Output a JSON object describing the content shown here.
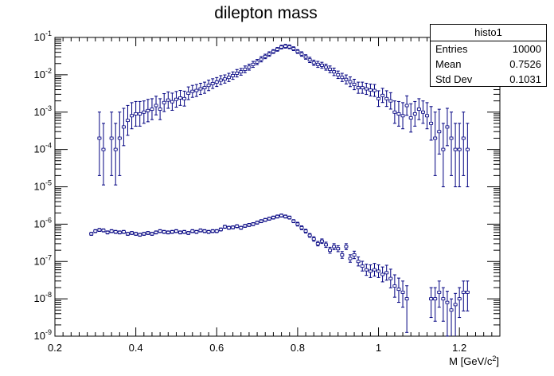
{
  "chart_data": {
    "type": "scatter",
    "title": "dilepton mass",
    "xlabel": "M [GeV/c",
    "xlabel_sup": "2",
    "xlabel_close": "]",
    "ylabel": "",
    "xlim": [
      0.2,
      1.3
    ],
    "ylim": [
      1e-09,
      0.1
    ],
    "yscale": "log",
    "grid": false,
    "marker_color": "#000080",
    "x_ticks": [
      "0.2",
      "0.4",
      "0.6",
      "0.8",
      "1",
      "1.2"
    ],
    "x_tick_values": [
      0.2,
      0.4,
      0.6,
      0.8,
      1.0,
      1.2
    ],
    "y_ticks": [
      {
        "base": "10",
        "exp": "-9",
        "value": 1e-09
      },
      {
        "base": "10",
        "exp": "-8",
        "value": 1e-08
      },
      {
        "base": "10",
        "exp": "-7",
        "value": 1e-07
      },
      {
        "base": "10",
        "exp": "-6",
        "value": 1e-06
      },
      {
        "base": "10",
        "exp": "-5",
        "value": 1e-05
      },
      {
        "base": "10",
        "exp": "-4",
        "value": 0.0001
      },
      {
        "base": "10",
        "exp": "-3",
        "value": 0.001
      },
      {
        "base": "10",
        "exp": "-2",
        "value": 0.01
      },
      {
        "base": "10",
        "exp": "-1",
        "value": 0.1
      }
    ],
    "series": [
      {
        "x": [
          0.31,
          0.32,
          0.34,
          0.35,
          0.36,
          0.37,
          0.38,
          0.39,
          0.4,
          0.41,
          0.42,
          0.43,
          0.44,
          0.45,
          0.46,
          0.47,
          0.48,
          0.49,
          0.5,
          0.51,
          0.52,
          0.53,
          0.54,
          0.55,
          0.56,
          0.57,
          0.58,
          0.59,
          0.6,
          0.61,
          0.62,
          0.63,
          0.64,
          0.65,
          0.66,
          0.67,
          0.68,
          0.69,
          0.7,
          0.71,
          0.72,
          0.73,
          0.74,
          0.75,
          0.76,
          0.77,
          0.78,
          0.79,
          0.8,
          0.81,
          0.82,
          0.83,
          0.84,
          0.85,
          0.86,
          0.87,
          0.88,
          0.89,
          0.9,
          0.91,
          0.92,
          0.93,
          0.94,
          0.95,
          0.96,
          0.97,
          0.98,
          0.99,
          1.0,
          1.01,
          1.02,
          1.03,
          1.04,
          1.05,
          1.06,
          1.07,
          1.08,
          1.09,
          1.1,
          1.11,
          1.12,
          1.13,
          1.14,
          1.15,
          1.16,
          1.17,
          1.18,
          1.19,
          1.2,
          1.21,
          1.22
        ],
        "y": [
          0.0002,
          0.0001,
          0.0002,
          0.0001,
          0.0002,
          0.0004,
          0.0006,
          0.0008,
          0.0009,
          0.0009,
          0.001,
          0.0011,
          0.0012,
          0.0015,
          0.0012,
          0.0018,
          0.0021,
          0.0019,
          0.0022,
          0.0024,
          0.0023,
          0.0032,
          0.0036,
          0.0038,
          0.0042,
          0.0045,
          0.0052,
          0.0058,
          0.0064,
          0.0072,
          0.0077,
          0.0085,
          0.0095,
          0.011,
          0.012,
          0.014,
          0.016,
          0.019,
          0.022,
          0.026,
          0.031,
          0.036,
          0.042,
          0.048,
          0.055,
          0.058,
          0.056,
          0.05,
          0.042,
          0.036,
          0.03,
          0.025,
          0.021,
          0.019,
          0.018,
          0.016,
          0.014,
          0.012,
          0.01,
          0.0085,
          0.0075,
          0.0065,
          0.0055,
          0.0045,
          0.0045,
          0.0042,
          0.0039,
          0.0038,
          0.0023,
          0.0028,
          0.0023,
          0.002,
          0.001,
          0.0009,
          0.0008,
          0.0015,
          0.0007,
          0.0009,
          0.0012,
          0.001,
          0.0008,
          0.0005,
          0.0002,
          0.0003,
          0.0001,
          0.0004,
          0.0002,
          0.0001,
          0.0001,
          0.0002,
          0.0001
        ],
        "err_low": [
          1.0,
          0.95,
          1.0,
          0.95,
          1.0,
          0.5,
          0.4,
          0.35,
          0.33,
          0.33,
          0.3,
          0.3,
          0.28,
          0.25,
          0.28,
          0.24,
          0.22,
          0.23,
          0.21,
          0.2,
          0.2,
          0.17,
          0.16,
          0.16,
          0.15,
          0.15,
          0.14,
          0.13,
          0.12,
          0.12,
          0.11,
          0.11,
          0.1,
          0.1,
          0.09,
          0.09,
          0.08,
          0.08,
          0.07,
          0.07,
          0.06,
          0.06,
          0.05,
          0.05,
          0.05,
          0.05,
          0.05,
          0.05,
          0.05,
          0.06,
          0.06,
          0.07,
          0.07,
          0.08,
          0.08,
          0.08,
          0.09,
          0.1,
          0.1,
          0.11,
          0.12,
          0.13,
          0.14,
          0.15,
          0.15,
          0.15,
          0.16,
          0.16,
          0.21,
          0.19,
          0.21,
          0.22,
          0.3,
          0.33,
          0.35,
          0.26,
          0.38,
          0.33,
          0.28,
          0.3,
          0.35,
          0.45,
          1.0,
          0.6,
          1.0,
          0.5,
          1.0,
          1.0,
          1.0,
          1.0,
          1.0
        ],
        "err_high": [
          0.7,
          0.7,
          0.7,
          0.7,
          0.7,
          0.5,
          0.4,
          0.35,
          0.33,
          0.33,
          0.3,
          0.3,
          0.28,
          0.25,
          0.28,
          0.24,
          0.22,
          0.23,
          0.21,
          0.2,
          0.2,
          0.17,
          0.16,
          0.16,
          0.15,
          0.15,
          0.14,
          0.13,
          0.12,
          0.12,
          0.11,
          0.11,
          0.1,
          0.1,
          0.09,
          0.09,
          0.08,
          0.08,
          0.07,
          0.07,
          0.06,
          0.06,
          0.05,
          0.05,
          0.05,
          0.05,
          0.05,
          0.05,
          0.05,
          0.06,
          0.06,
          0.07,
          0.07,
          0.08,
          0.08,
          0.08,
          0.09,
          0.1,
          0.1,
          0.11,
          0.12,
          0.13,
          0.14,
          0.15,
          0.15,
          0.15,
          0.16,
          0.16,
          0.21,
          0.19,
          0.21,
          0.22,
          0.3,
          0.33,
          0.35,
          0.26,
          0.38,
          0.33,
          0.28,
          0.3,
          0.35,
          0.45,
          0.7,
          0.6,
          0.7,
          0.5,
          0.7,
          0.7,
          0.7,
          0.7,
          0.7
        ]
      },
      {
        "x": [
          0.29,
          0.3,
          0.31,
          0.32,
          0.33,
          0.34,
          0.35,
          0.36,
          0.37,
          0.38,
          0.39,
          0.4,
          0.41,
          0.42,
          0.43,
          0.44,
          0.45,
          0.46,
          0.47,
          0.48,
          0.49,
          0.5,
          0.51,
          0.52,
          0.53,
          0.54,
          0.55,
          0.56,
          0.57,
          0.58,
          0.59,
          0.6,
          0.61,
          0.62,
          0.63,
          0.64,
          0.65,
          0.66,
          0.67,
          0.68,
          0.69,
          0.7,
          0.71,
          0.72,
          0.73,
          0.74,
          0.75,
          0.76,
          0.77,
          0.78,
          0.79,
          0.8,
          0.81,
          0.82,
          0.83,
          0.84,
          0.85,
          0.86,
          0.87,
          0.88,
          0.89,
          0.9,
          0.91,
          0.92,
          0.93,
          0.94,
          0.95,
          0.96,
          0.97,
          0.98,
          0.99,
          1.0,
          1.01,
          1.02,
          1.03,
          1.04,
          1.05,
          1.06,
          1.07,
          1.13,
          1.14,
          1.15,
          1.16,
          1.17,
          1.18,
          1.19,
          1.2,
          1.21,
          1.22
        ],
        "y": [
          5.5e-07,
          6.5e-07,
          7e-07,
          6.8e-07,
          6e-07,
          6.5e-07,
          6.2e-07,
          6e-07,
          6.2e-07,
          5.5e-07,
          5.8e-07,
          5.5e-07,
          5.2e-07,
          5.5e-07,
          5.8e-07,
          5.5e-07,
          6e-07,
          6.5e-07,
          6.2e-07,
          6e-07,
          6.2e-07,
          6.5e-07,
          6e-07,
          6.2e-07,
          5.8e-07,
          6.5e-07,
          6.2e-07,
          6.8e-07,
          6.5e-07,
          6.2e-07,
          6.5e-07,
          6.5e-07,
          7.2e-07,
          8.5e-07,
          8e-07,
          8.2e-07,
          8.8e-07,
          8e-07,
          9e-07,
          9.5e-07,
          1e-06,
          1.1e-06,
          1.2e-06,
          1.3e-06,
          1.4e-06,
          1.5e-06,
          1.6e-06,
          1.7e-06,
          1.6e-06,
          1.5e-06,
          1.2e-06,
          1e-06,
          8e-07,
          6.5e-07,
          5e-07,
          4e-07,
          3e-07,
          3.5e-07,
          2.8e-07,
          2e-07,
          2.5e-07,
          2.2e-07,
          1.5e-07,
          2.5e-07,
          1.2e-07,
          1.5e-07,
          1e-07,
          7.5e-08,
          6e-08,
          5.5e-08,
          6e-08,
          5.5e-08,
          4.5e-08,
          5e-08,
          3.5e-08,
          2.2e-08,
          1.8e-08,
          1.5e-08,
          1e-08,
          1e-08,
          1e-08,
          1.5e-08,
          1e-08,
          8e-09,
          5e-09,
          7e-09,
          1e-08,
          1.5e-08,
          1.5e-08
        ],
        "err_low": [
          0.04,
          0.04,
          0.04,
          0.04,
          0.04,
          0.04,
          0.04,
          0.04,
          0.04,
          0.04,
          0.04,
          0.04,
          0.04,
          0.04,
          0.04,
          0.04,
          0.04,
          0.04,
          0.04,
          0.04,
          0.04,
          0.04,
          0.04,
          0.04,
          0.04,
          0.04,
          0.04,
          0.04,
          0.04,
          0.04,
          0.04,
          0.04,
          0.04,
          0.04,
          0.04,
          0.04,
          0.04,
          0.04,
          0.04,
          0.04,
          0.04,
          0.04,
          0.04,
          0.04,
          0.04,
          0.04,
          0.04,
          0.04,
          0.04,
          0.04,
          0.04,
          0.05,
          0.05,
          0.05,
          0.05,
          0.06,
          0.06,
          0.06,
          0.07,
          0.08,
          0.08,
          0.08,
          0.09,
          0.08,
          0.1,
          0.1,
          0.12,
          0.13,
          0.15,
          0.17,
          0.17,
          0.17,
          0.2,
          0.2,
          0.25,
          0.3,
          0.35,
          0.4,
          0.9,
          0.5,
          0.6,
          0.4,
          0.6,
          0.9,
          1.0,
          0.9,
          0.5,
          0.5,
          0.5
        ],
        "err_high": [
          0.04,
          0.04,
          0.04,
          0.04,
          0.04,
          0.04,
          0.04,
          0.04,
          0.04,
          0.04,
          0.04,
          0.04,
          0.04,
          0.04,
          0.04,
          0.04,
          0.04,
          0.04,
          0.04,
          0.04,
          0.04,
          0.04,
          0.04,
          0.04,
          0.04,
          0.04,
          0.04,
          0.04,
          0.04,
          0.04,
          0.04,
          0.04,
          0.04,
          0.04,
          0.04,
          0.04,
          0.04,
          0.04,
          0.04,
          0.04,
          0.04,
          0.04,
          0.04,
          0.04,
          0.04,
          0.04,
          0.04,
          0.04,
          0.04,
          0.04,
          0.04,
          0.05,
          0.05,
          0.05,
          0.05,
          0.06,
          0.06,
          0.06,
          0.07,
          0.08,
          0.08,
          0.08,
          0.09,
          0.08,
          0.1,
          0.1,
          0.12,
          0.13,
          0.15,
          0.17,
          0.17,
          0.17,
          0.2,
          0.2,
          0.25,
          0.3,
          0.3,
          0.3,
          0.35,
          0.3,
          0.3,
          0.3,
          0.3,
          0.3,
          0.3,
          0.3,
          0.3,
          0.3,
          0.3
        ]
      }
    ],
    "bin_half_width": 0.005
  },
  "stats": {
    "title": "histo1",
    "rows": [
      {
        "label": "Entries",
        "value": "10000"
      },
      {
        "label": "Mean",
        "value": "0.7526"
      },
      {
        "label": "Std Dev",
        "value": "0.1031"
      }
    ]
  }
}
